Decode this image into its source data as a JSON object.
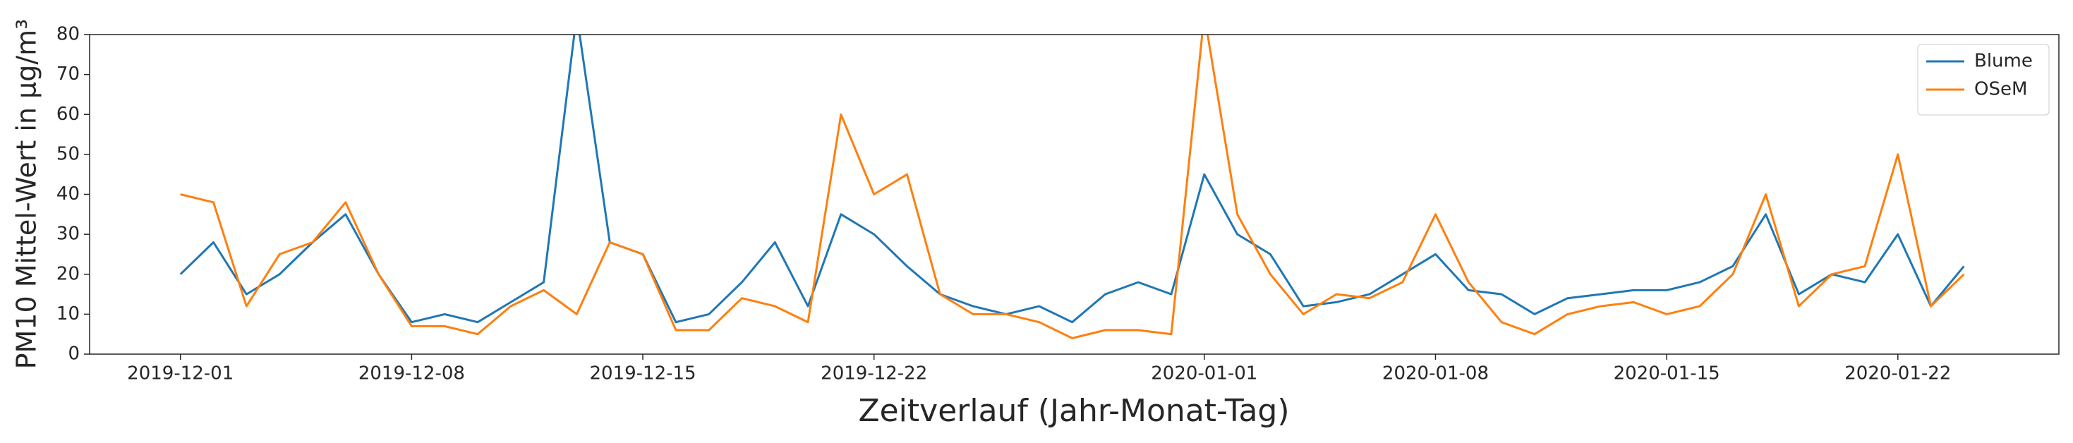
{
  "chart_data": {
    "type": "line",
    "ylabel": "PM10 Mittel-Wert in µg/m³",
    "xlabel": "Zeitverlauf (Jahr-Monat-Tag)",
    "x": [
      "2019-12-01",
      "2019-12-02",
      "2019-12-03",
      "2019-12-04",
      "2019-12-05",
      "2019-12-06",
      "2019-12-07",
      "2019-12-08",
      "2019-12-09",
      "2019-12-10",
      "2019-12-11",
      "2019-12-12",
      "2019-12-13",
      "2019-12-14",
      "2019-12-15",
      "2019-12-16",
      "2019-12-17",
      "2019-12-18",
      "2019-12-19",
      "2019-12-20",
      "2019-12-21",
      "2019-12-22",
      "2019-12-23",
      "2019-12-24",
      "2019-12-25",
      "2019-12-26",
      "2019-12-27",
      "2019-12-28",
      "2019-12-29",
      "2019-12-30",
      "2019-12-31",
      "2020-01-01",
      "2020-01-02",
      "2020-01-03",
      "2020-01-04",
      "2020-01-05",
      "2020-01-06",
      "2020-01-07",
      "2020-01-08",
      "2020-01-09",
      "2020-01-10",
      "2020-01-11",
      "2020-01-12",
      "2020-01-13",
      "2020-01-14",
      "2020-01-15",
      "2020-01-16",
      "2020-01-17",
      "2020-01-18",
      "2020-01-19",
      "2020-01-20",
      "2020-01-21",
      "2020-01-22",
      "2020-01-23",
      "2020-01-24"
    ],
    "series": [
      {
        "name": "Blume",
        "color": "#1f77b4",
        "values": [
          20,
          28,
          15,
          20,
          28,
          35,
          20,
          8,
          10,
          8,
          13,
          18,
          85,
          28,
          25,
          8,
          10,
          18,
          28,
          12,
          35,
          30,
          22,
          15,
          12,
          10,
          12,
          8,
          15,
          18,
          15,
          45,
          30,
          25,
          12,
          13,
          15,
          20,
          25,
          16,
          15,
          10,
          14,
          15,
          16,
          16,
          18,
          22,
          35,
          15,
          20,
          18,
          30,
          12,
          22
        ]
      },
      {
        "name": "OSeM",
        "color": "#ff7f0e",
        "values": [
          40,
          38,
          12,
          25,
          28,
          38,
          20,
          7,
          7,
          5,
          12,
          16,
          10,
          28,
          25,
          6,
          6,
          14,
          12,
          8,
          60,
          40,
          45,
          15,
          10,
          10,
          8,
          4,
          6,
          6,
          5,
          85,
          35,
          20,
          10,
          15,
          14,
          18,
          35,
          18,
          8,
          5,
          10,
          12,
          13,
          10,
          12,
          20,
          40,
          12,
          20,
          22,
          50,
          12,
          20
        ]
      }
    ],
    "xlim": [
      "2019-11-28T06:00",
      "2020-01-26T21:00"
    ],
    "xticks": [
      "2019-12-01",
      "2019-12-08",
      "2019-12-15",
      "2019-12-22",
      "2020-01-01",
      "2020-01-08",
      "2020-01-15",
      "2020-01-22"
    ],
    "ylim": [
      0,
      80
    ],
    "yticks": [
      0,
      10,
      20,
      30,
      40,
      50,
      60,
      70,
      80
    ],
    "legend": "upper right"
  }
}
